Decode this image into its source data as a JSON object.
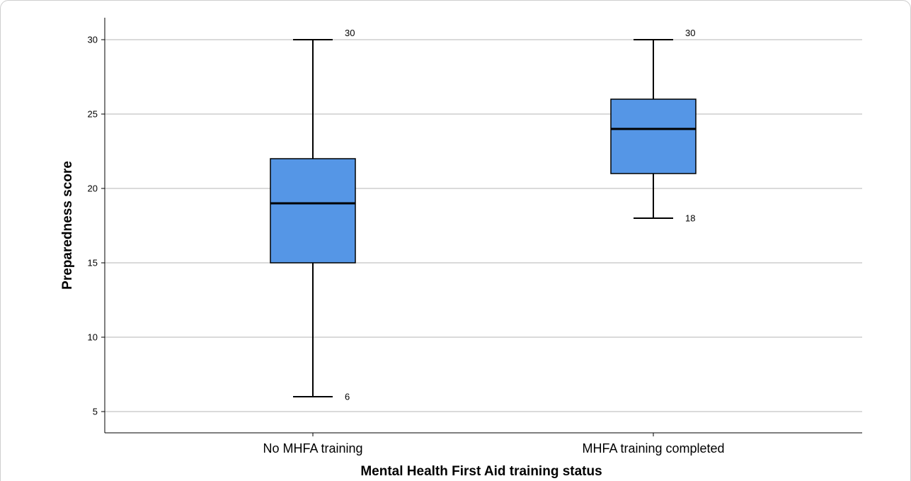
{
  "chart_data": {
    "type": "box",
    "xlabel": "Mental Health First Aid training status",
    "ylabel": "Preparedness score",
    "ylim": [
      3.5,
      31.5
    ],
    "yticks": [
      5,
      10,
      15,
      20,
      25,
      30
    ],
    "grid": true,
    "box_color": "#5596e6",
    "categories": [
      "No MHFA training",
      "MHFA training completed"
    ],
    "boxes": [
      {
        "category": "No MHFA training",
        "min": 6,
        "q1": 15,
        "median": 19,
        "q3": 22,
        "max": 30,
        "min_label": "6",
        "max_label": "30"
      },
      {
        "category": "MHFA training completed",
        "min": 18,
        "q1": 21,
        "median": 24,
        "q3": 26,
        "max": 30,
        "min_label": "18",
        "max_label": "30"
      }
    ]
  }
}
